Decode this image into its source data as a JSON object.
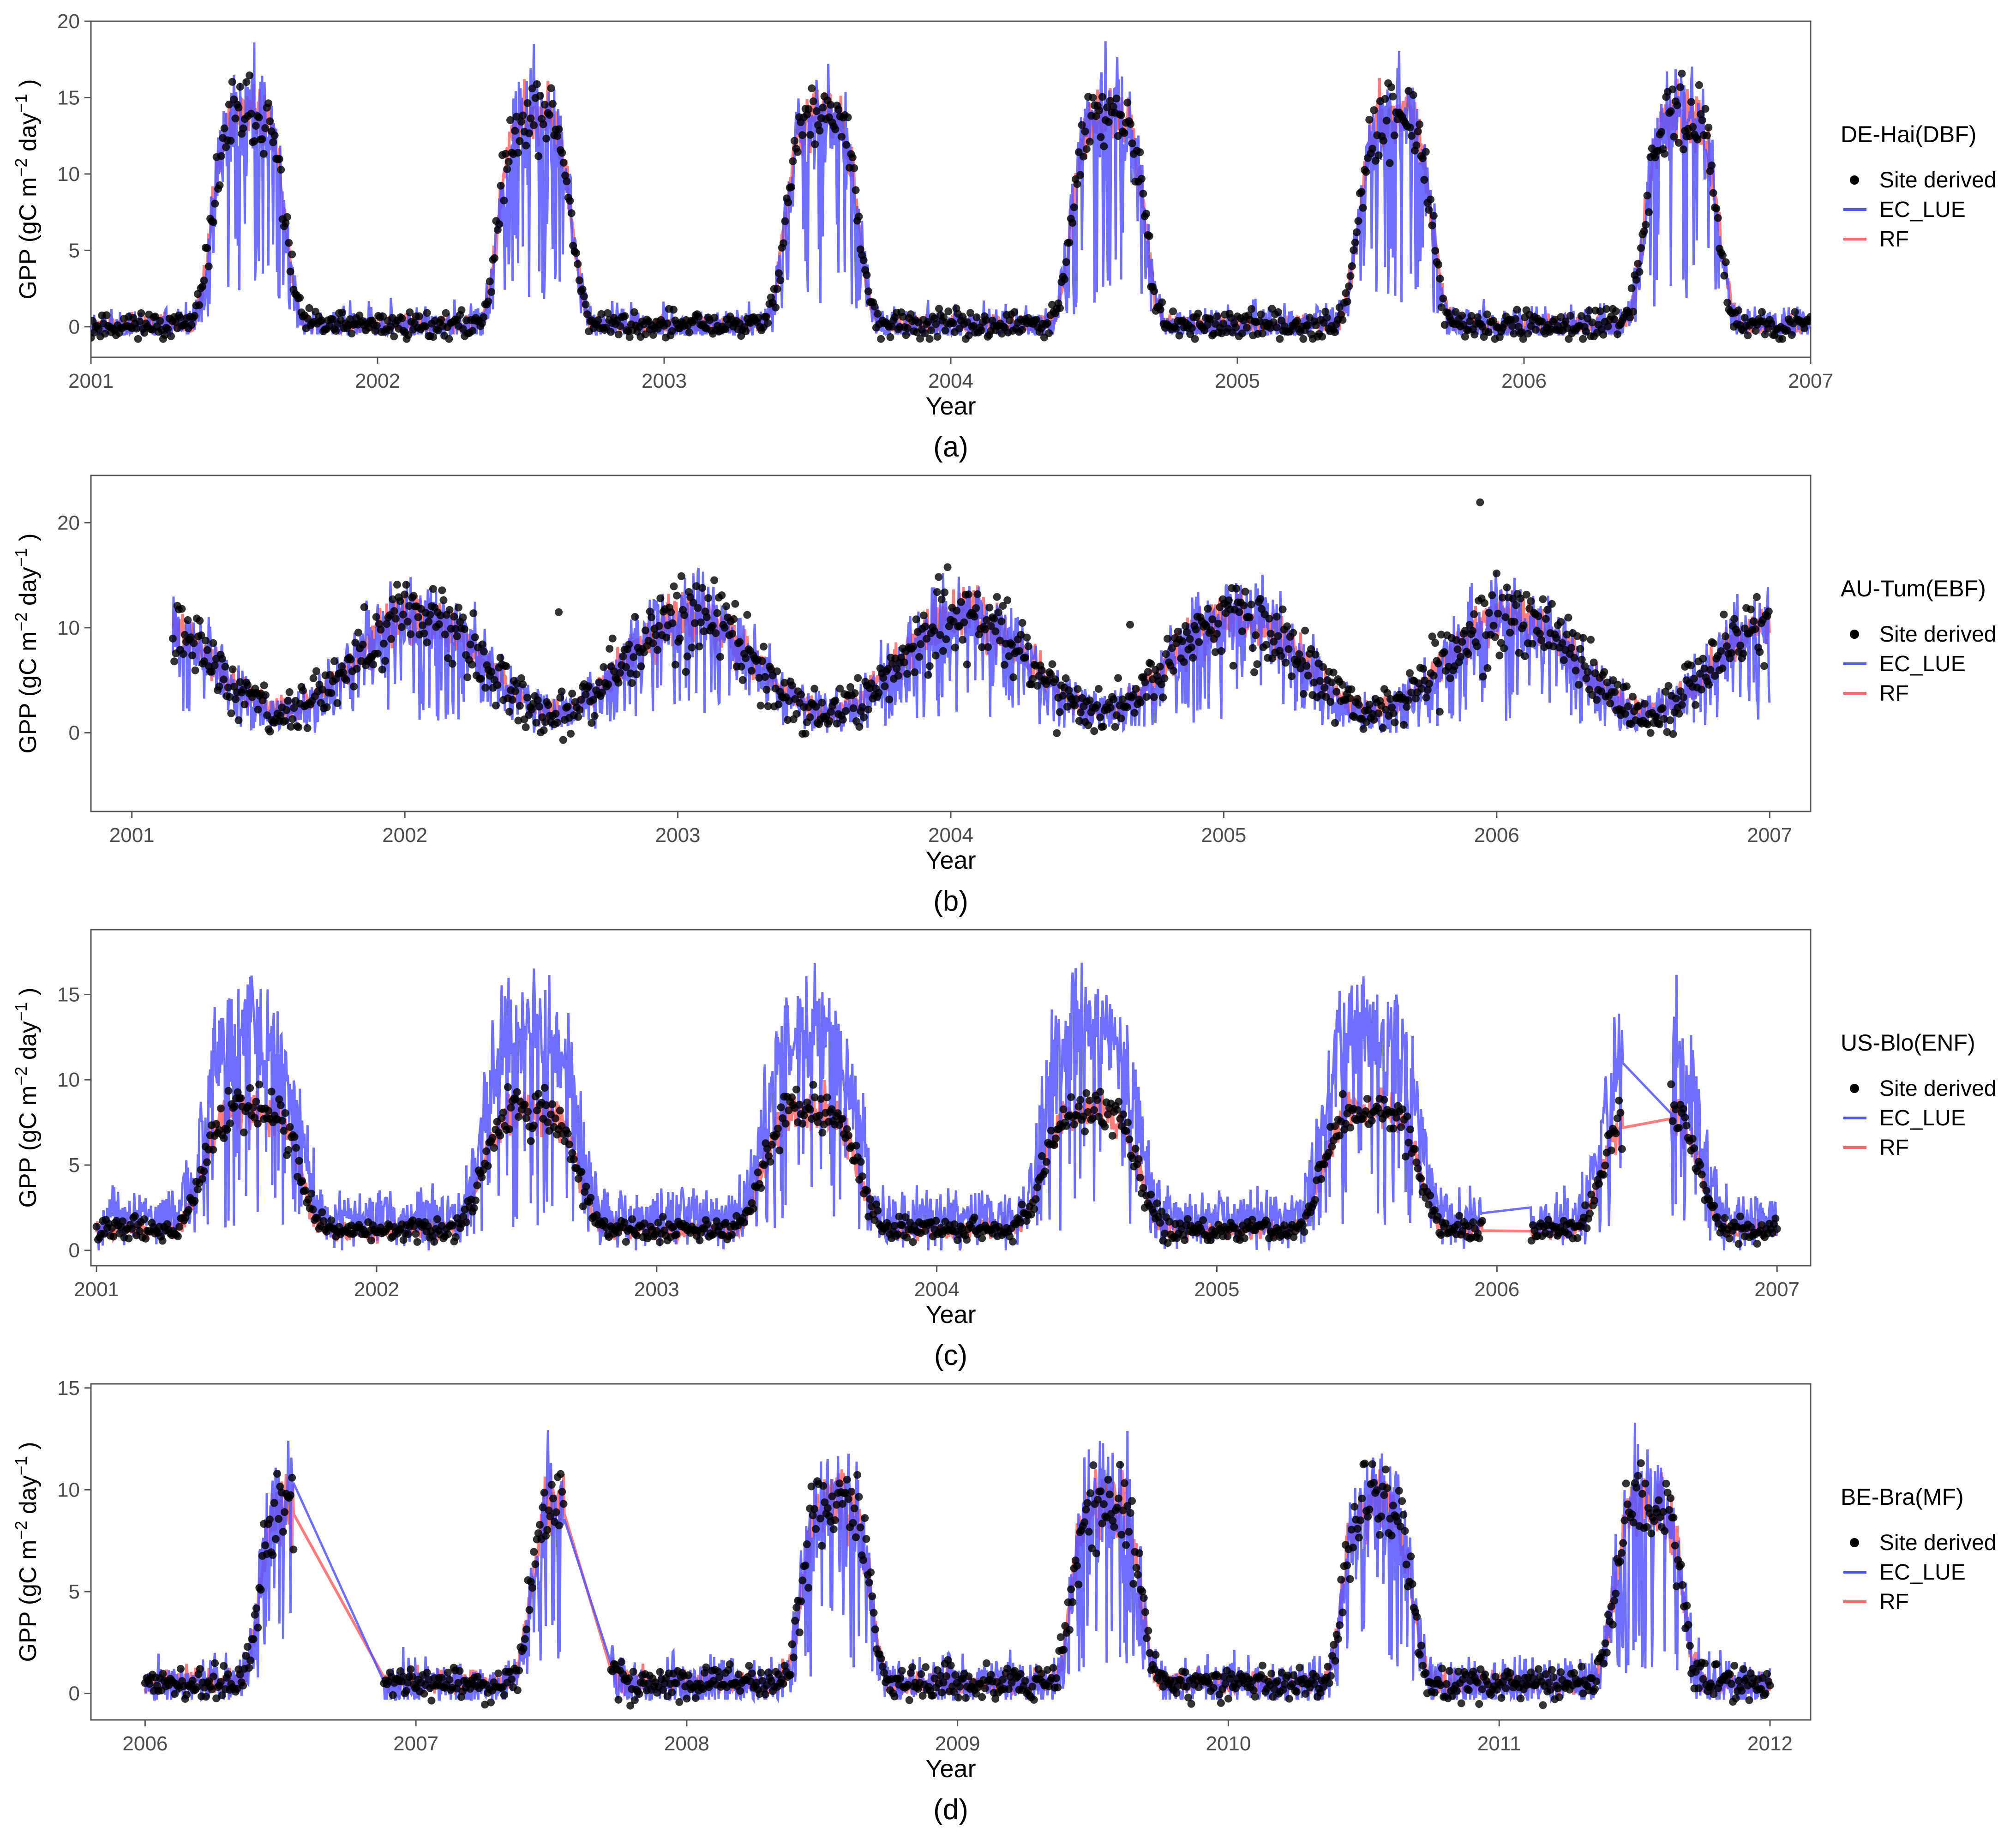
{
  "colors": {
    "site": "#000000",
    "ec_lue": "#5555ff",
    "rf": "#ff6666",
    "frame": "#555555",
    "tick_label": "#4d4d4d"
  },
  "legend_title_style": "plain",
  "chart_data": [
    {
      "type": "line",
      "panel_label": "(a)",
      "site": "DE-Hai(DBF)",
      "xlabel": "Year",
      "ylabel": "GPP (gC m−2 day−1 )",
      "xlim": [
        2001.0,
        2007.0
      ],
      "ylim": [
        -2.0,
        20.0
      ],
      "x_ticks": [
        2001,
        2002,
        2003,
        2004,
        2005,
        2006,
        2007
      ],
      "y_ticks": [
        0,
        5,
        10,
        15,
        20
      ],
      "legend": [
        "Site derived",
        "EC_LUE",
        "RF"
      ],
      "seasonal": {
        "start": 2001.0,
        "end": 2007.0,
        "base": 0.1,
        "amplitude": 13.8,
        "peak_phase": 0.55,
        "kind": "summer"
      },
      "series": [
        {
          "name": "Site derived",
          "style": "points",
          "noise": 1.6,
          "min": -0.8,
          "max": 17.8
        },
        {
          "name": "EC_LUE",
          "style": "line",
          "noise": 2.6,
          "dips": 0.18,
          "min": -0.5,
          "max": 19.2
        },
        {
          "name": "RF",
          "style": "line",
          "noise": 1.4,
          "min": -0.3,
          "max": 16.5
        }
      ],
      "gaps": []
    },
    {
      "type": "line",
      "panel_label": "(b)",
      "site": "AU-Tum(EBF)",
      "xlabel": "Year",
      "ylabel": "GPP (gC m−2 day−1 )",
      "xlim": [
        2000.85,
        2007.15
      ],
      "ylim": [
        -7.5,
        24.5
      ],
      "x_ticks": [
        2001,
        2002,
        2003,
        2004,
        2005,
        2006,
        2007
      ],
      "y_ticks": [
        0,
        10,
        20
      ],
      "legend": [
        "Site derived",
        "EC_LUE",
        "RF"
      ],
      "seasonal": {
        "start": 2001.15,
        "end": 2007.0,
        "base": 6.5,
        "amplitude": 4.5,
        "peak_phase": 0.05,
        "kind": "cosine"
      },
      "series": [
        {
          "name": "Site derived",
          "style": "points",
          "noise": 2.8,
          "min": -6.2,
          "max": 22.8
        },
        {
          "name": "EC_LUE",
          "style": "line",
          "noise": 3.0,
          "dips": 0.12,
          "min": 0.0,
          "max": 21.0
        },
        {
          "name": "RF",
          "style": "line",
          "noise": 1.8,
          "min": 1.0,
          "max": 16.5
        }
      ],
      "gaps": []
    },
    {
      "type": "line",
      "panel_label": "(c)",
      "site": "US-Blo(ENF)",
      "xlabel": "Year",
      "ylabel": "GPP (gC m−2 day−1 )",
      "xlim": [
        2000.98,
        2007.12
      ],
      "ylim": [
        -0.9,
        18.8
      ],
      "x_ticks": [
        2001,
        2002,
        2003,
        2004,
        2005,
        2006,
        2007
      ],
      "y_ticks": [
        0,
        5,
        10,
        15
      ],
      "legend": [
        "Site derived",
        "EC_LUE",
        "RF"
      ],
      "seasonal": {
        "start": 2001.0,
        "end": 2007.0,
        "base": 1.2,
        "amplitude": 7.0,
        "peak_phase": 0.55,
        "kind": "summer_broad"
      },
      "series": [
        {
          "name": "Site derived",
          "style": "points",
          "noise": 1.0,
          "min": 0.0,
          "max": 13.0
        },
        {
          "name": "EC_LUE",
          "style": "line",
          "noise": 2.4,
          "scale": 1.55,
          "dips": 0.15,
          "min": 0.0,
          "max": 18.0
        },
        {
          "name": "RF",
          "style": "line",
          "noise": 0.9,
          "min": 0.0,
          "max": 10.0
        }
      ],
      "gaps": [
        [
          2005.95,
          2006.12
        ],
        [
          2006.45,
          2006.62
        ]
      ]
    },
    {
      "type": "line",
      "panel_label": "(d)",
      "site": "BE-Bra(MF)",
      "xlabel": "Year",
      "ylabel": "GPP (gC m−2 day−1 )",
      "xlim": [
        2005.8,
        2012.15
      ],
      "ylim": [
        -1.3,
        15.2
      ],
      "x_ticks": [
        2006,
        2007,
        2008,
        2009,
        2010,
        2011,
        2012
      ],
      "y_ticks": [
        0,
        5,
        10,
        15
      ],
      "legend": [
        "Site derived",
        "EC_LUE",
        "RF"
      ],
      "seasonal": {
        "start": 2006.0,
        "end": 2012.0,
        "base": 0.5,
        "amplitude": 8.8,
        "peak_phase": 0.55,
        "kind": "summer"
      },
      "series": [
        {
          "name": "Site derived",
          "style": "points",
          "noise": 1.4,
          "min": -0.6,
          "max": 14.0
        },
        {
          "name": "EC_LUE",
          "style": "line",
          "noise": 2.3,
          "dips": 0.16,
          "min": -0.3,
          "max": 14.6
        },
        {
          "name": "RF",
          "style": "line",
          "noise": 1.2,
          "min": 0.0,
          "max": 11.0
        }
      ],
      "gaps": [
        [
          2006.55,
          2006.72
        ],
        [
          2006.72,
          2006.88
        ],
        [
          2007.55,
          2007.72
        ]
      ]
    }
  ]
}
